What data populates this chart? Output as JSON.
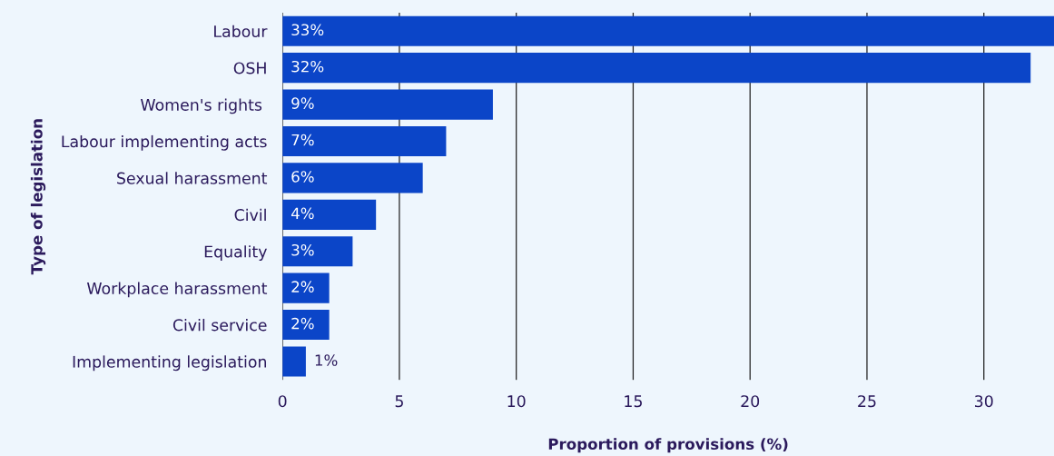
{
  "chart_data": {
    "type": "bar",
    "orientation": "horizontal",
    "xlabel": "Proportion of provisions (%)",
    "ylabel": "Type of legislation",
    "categories": [
      "Labour",
      "OSH",
      "Women's rights ",
      "Labour implementing acts",
      "Sexual harassment",
      "Civil",
      "Equality",
      "Workplace harassment",
      "Civil service",
      "Implementing legislation"
    ],
    "values": [
      33,
      32,
      9,
      7,
      6,
      4,
      3,
      2,
      2,
      1
    ],
    "value_labels": [
      "33%",
      "32%",
      "9%",
      "7%",
      "6%",
      "4%",
      "3%",
      "2%",
      "2%",
      "1%"
    ],
    "color": "#0b45c8",
    "xlim": [
      0,
      33
    ],
    "xticks": [
      0,
      5,
      10,
      15,
      20,
      25,
      30
    ],
    "grid": "x"
  }
}
